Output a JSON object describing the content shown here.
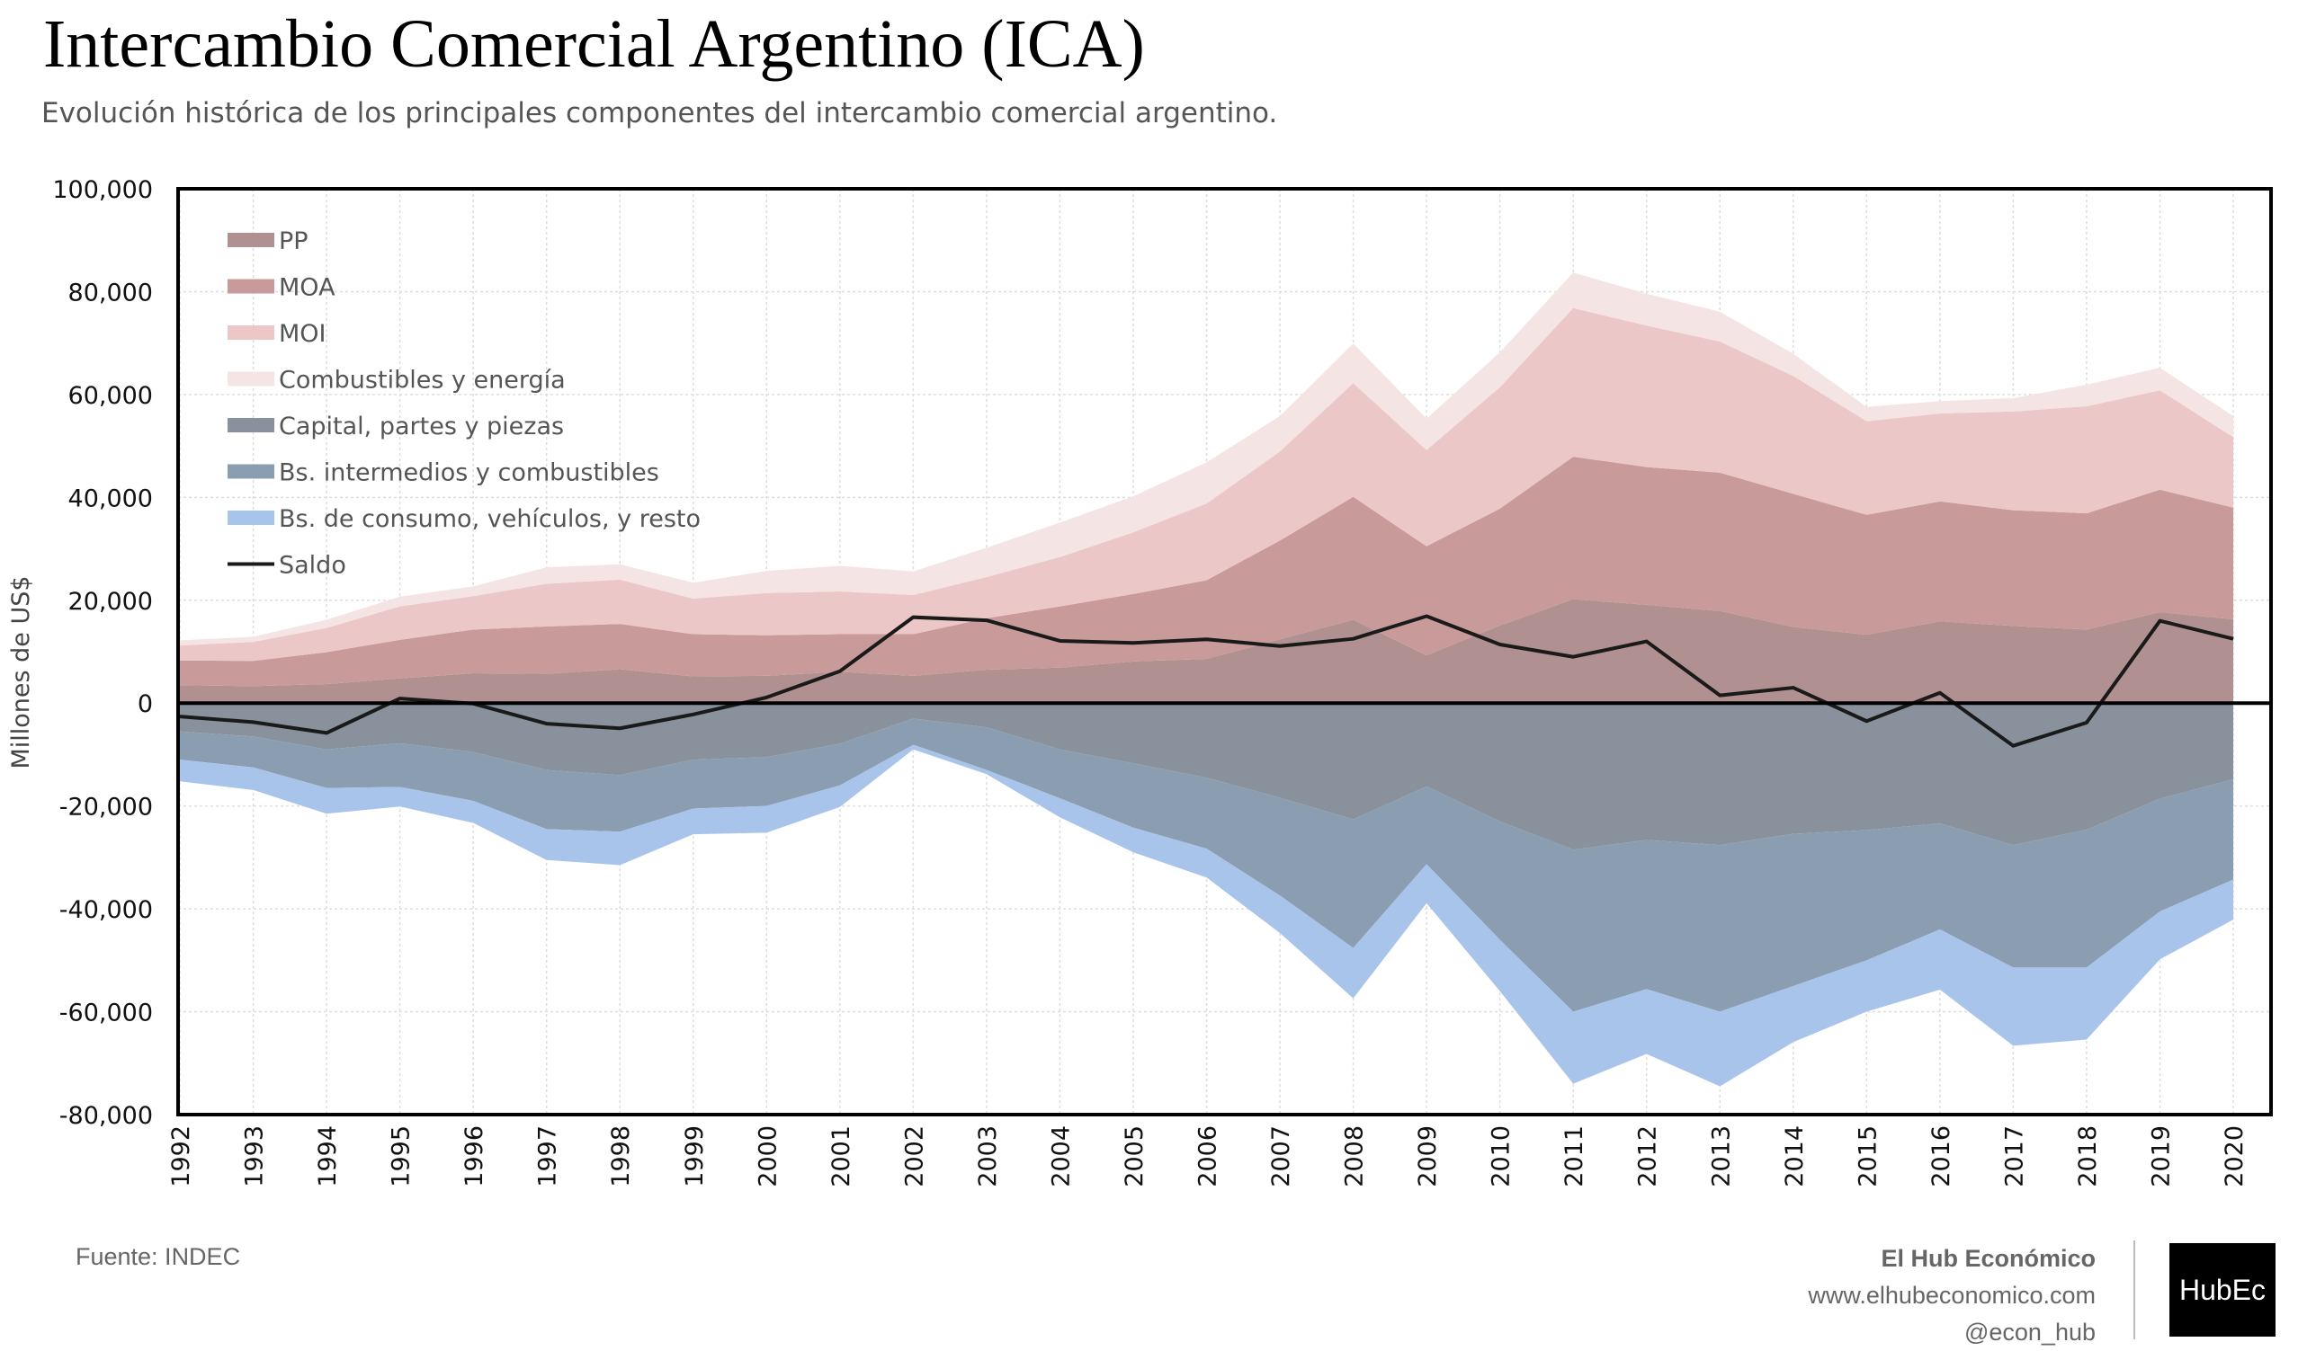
{
  "header": {
    "title": "Intercambio Comercial Argentino (ICA)",
    "subtitle": "Evolución histórica de los principales componentes del intercambio comercial argentino."
  },
  "footer": {
    "source": "Fuente: INDEC",
    "brand_name": "El Hub Económico",
    "brand_url": "www.elhubeconomico.com",
    "brand_handle": "@econ_hub",
    "logo_text": "HubEc"
  },
  "chart_data": {
    "type": "area",
    "ylabel": "Millones de US$",
    "ylim": [
      -80000,
      100000
    ],
    "yticks": [
      100000,
      80000,
      60000,
      40000,
      20000,
      0,
      -20000,
      -40000,
      -60000,
      -80000
    ],
    "ytick_labels": [
      "100,000",
      "80,000",
      "60,000",
      "40,000",
      "20,000",
      "0",
      "-20,000",
      "-40,000",
      "-60,000",
      "-80,000"
    ],
    "grid": true,
    "legend_position": "top-left",
    "x": [
      "1992",
      "1993",
      "1994",
      "1995",
      "1996",
      "1997",
      "1998",
      "1999",
      "2000",
      "2001",
      "2002",
      "2003",
      "2004",
      "2005",
      "2006",
      "2007",
      "2008",
      "2009",
      "2010",
      "2011",
      "2012",
      "2013",
      "2014",
      "2015",
      "2016",
      "2017",
      "2018",
      "2019",
      "2020"
    ],
    "exports_stacked": [
      {
        "name": "PP",
        "color": "#b09090",
        "values": [
          3500,
          3300,
          3700,
          4800,
          5800,
          5700,
          6600,
          5200,
          5300,
          6100,
          5300,
          6500,
          6900,
          8100,
          8600,
          12400,
          16200,
          9300,
          15100,
          20200,
          19100,
          17900,
          14800,
          13300,
          15900,
          15000,
          14300,
          17700,
          16300
        ]
      },
      {
        "name": "MOA",
        "color": "#c99a9a",
        "values": [
          4800,
          4900,
          6200,
          7500,
          8500,
          9200,
          8800,
          8200,
          7900,
          7300,
          8100,
          10000,
          11900,
          13100,
          15300,
          19200,
          23900,
          21200,
          22700,
          27700,
          26800,
          26900,
          25900,
          23300,
          23300,
          22500,
          22600,
          23800,
          21700
        ]
      },
      {
        "name": "MOI",
        "color": "#ecc7c7",
        "values": [
          2900,
          3700,
          4700,
          6500,
          6500,
          8300,
          8600,
          6900,
          8200,
          8300,
          7600,
          8000,
          9600,
          12000,
          14900,
          17300,
          22100,
          18700,
          23600,
          28900,
          27500,
          25500,
          22900,
          18200,
          17100,
          19200,
          20800,
          19300,
          13700
        ]
      },
      {
        "name": "Combustibles y energía",
        "color": "#f4e4e4",
        "values": [
          1000,
          1000,
          1600,
          1900,
          1900,
          3200,
          3000,
          3100,
          4300,
          5000,
          4600,
          5700,
          6700,
          7000,
          8000,
          6900,
          7700,
          6100,
          6800,
          6900,
          6200,
          5800,
          4300,
          2800,
          2400,
          2600,
          4200,
          4400,
          4100
        ]
      }
    ],
    "imports_stacked": [
      {
        "name": "Capital, partes y piezas",
        "color": "#89919c",
        "values": [
          -5500,
          -6500,
          -9000,
          -7800,
          -9500,
          -13000,
          -14000,
          -11000,
          -10500,
          -7900,
          -3000,
          -4700,
          -9000,
          -11700,
          -14500,
          -18400,
          -22600,
          -16200,
          -23000,
          -28500,
          -26600,
          -27600,
          -25400,
          -24700,
          -23400,
          -27600,
          -24600,
          -18600,
          -14800
        ]
      },
      {
        "name": "Bs. intermedios y combustibles",
        "color": "#8b9db1",
        "values": [
          -5500,
          -6000,
          -7500,
          -8500,
          -9500,
          -11500,
          -11000,
          -9500,
          -9500,
          -8100,
          -5100,
          -8300,
          -9500,
          -12500,
          -13800,
          -19000,
          -25000,
          -15100,
          -23000,
          -31500,
          -29000,
          -32400,
          -29600,
          -25300,
          -20600,
          -23800,
          -26800,
          -21900,
          -19500
        ]
      },
      {
        "name": "Bs. de consumo, vehículos, y resto",
        "color": "#a9c4ea",
        "values": [
          -4200,
          -4400,
          -5000,
          -3800,
          -4300,
          -6000,
          -6500,
          -5000,
          -5200,
          -4200,
          -900,
          -800,
          -3700,
          -4800,
          -5600,
          -7300,
          -9800,
          -7600,
          -10000,
          -14000,
          -12600,
          -14500,
          -10900,
          -10000,
          -11700,
          -15200,
          -14000,
          -9300,
          -7800
        ]
      }
    ],
    "line": {
      "name": "Saldo",
      "color": "#1a1a1a",
      "values": [
        -2600,
        -3700,
        -5800,
        900,
        -100,
        -4000,
        -4900,
        -2200,
        1100,
        6200,
        16700,
        16100,
        12100,
        11700,
        12400,
        11100,
        12500,
        16900,
        11400,
        9000,
        12000,
        1500,
        3000,
        -3500,
        2000,
        -8300,
        -3800,
        16000,
        12500
      ]
    }
  }
}
